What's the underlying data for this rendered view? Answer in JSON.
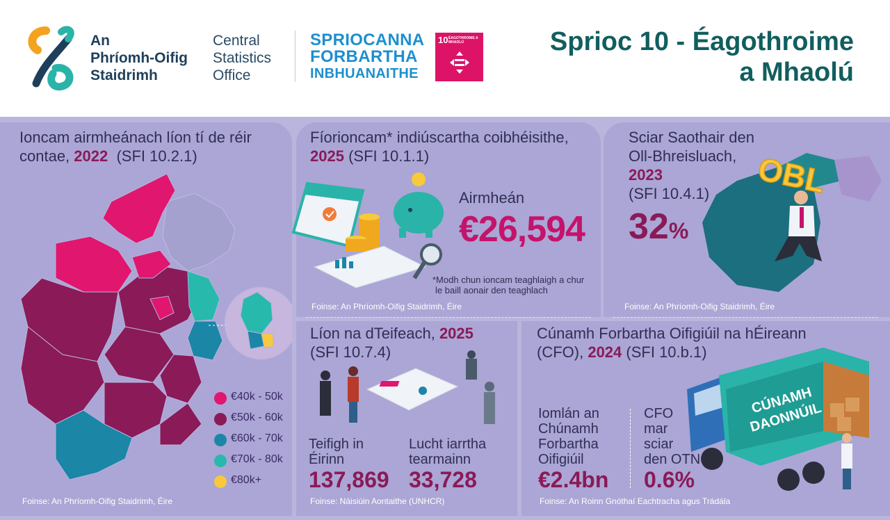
{
  "header": {
    "cso_irish_lines": [
      "An",
      "Phríomh-Oifig",
      "Staidrimh"
    ],
    "cso_english_lines": [
      "Central",
      "Statistics",
      "Office"
    ],
    "sdg_lines": [
      "SPRIOCANNA",
      "FORBARTHA",
      "INBHUANAITHE"
    ],
    "sdg_badge": {
      "number": "10",
      "label": "ÉAGOTHROIME A MHAOLÚ",
      "color": "#dd1367"
    },
    "title_lines": [
      "Sprioc 10 - Éagothroime",
      "a Mhaolú"
    ]
  },
  "income_county": {
    "title_text": "Ioncam airmheánach líon tí de réir contae,",
    "year": "2022",
    "indicator": "(SFI 10.2.1)",
    "legend": [
      {
        "label": "€40k - 50k",
        "color": "#e0166f"
      },
      {
        "label": "€50k - 60k",
        "color": "#8b1a58"
      },
      {
        "label": "€60k - 70k",
        "color": "#1b86a6"
      },
      {
        "label": "€70k - 80k",
        "color": "#28b9ad"
      },
      {
        "label": "€80k+",
        "color": "#f7c93b"
      }
    ],
    "source": "Foinse: An Phríomh-Oifig Staidrimh, Éire"
  },
  "disposable_income": {
    "title_text": "Fíorioncam* indiúscartha coibhéisithe,",
    "year": "2025",
    "indicator": "(SFI 10.1.1)",
    "average_label": "Airmheán",
    "average_value": "€26,594",
    "footnote_lines": [
      "*Modh chun ioncam teaghlaigh a chur",
      "le baill aonair den teaghlach"
    ],
    "source": "Foinse: An Phríomh-Oifig Staidrimh, Éire"
  },
  "labour_share": {
    "title_lines": [
      "Sciar Saothair den",
      "Oll-Bhreisluach,"
    ],
    "year": "2023",
    "indicator": "(SFI 10.4.1)",
    "value": "32",
    "unit": "%",
    "illustration_text": "OBL",
    "source": "Foinse: An Phríomh-Oifig Staidrimh, Éire"
  },
  "refugees": {
    "title_text": "Líon na dTeifeach,",
    "year": "2025",
    "indicator": "(SFI 10.7.4)",
    "refugees_label_lines": [
      "Teifigh in",
      "Éirinn"
    ],
    "refugees_value": "137,869",
    "asylum_label_lines": [
      "Lucht iarrtha",
      "tearmainn"
    ],
    "asylum_value": "33,728",
    "source": "Foinse: Náisiúin Aontaithe (UNHCR)"
  },
  "oda": {
    "title_line1": "Cúnamh Forbartha Oifigiúil na hÉireann",
    "title_line2_prefix": "(CFO),",
    "year": "2024",
    "indicator": "(SFI 10.b.1)",
    "total_label_lines": [
      "Iomlán an",
      "Chúnamh",
      "Forbartha",
      "Oifigiúil"
    ],
    "total_value": "€2.4bn",
    "share_label_lines": [
      "CFO",
      "mar",
      "sciar",
      "den OTN"
    ],
    "share_value": "0.6%",
    "truck_text_lines": [
      "CÚNAMH",
      "DAONNÚIL"
    ],
    "source": "Foinse: An Roinn Gnóthaí Eachtracha agus Trádála"
  }
}
